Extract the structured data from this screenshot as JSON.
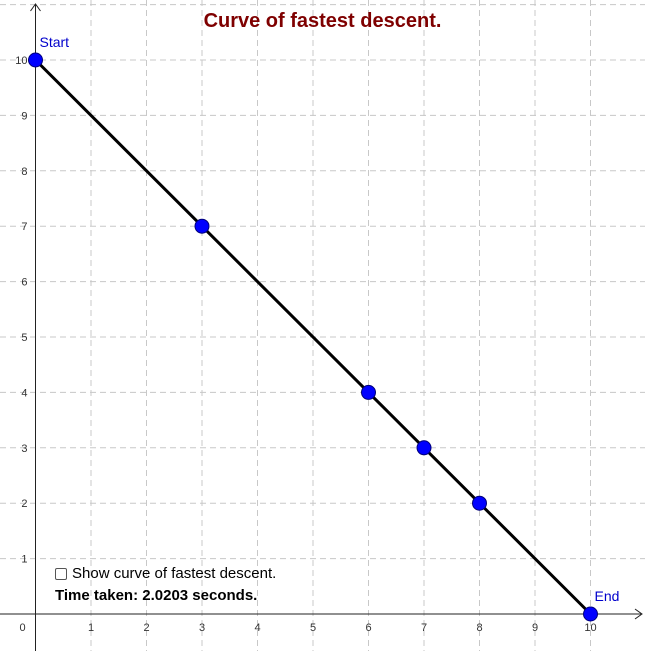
{
  "title": "Curve of fastest descent.",
  "title_color": "#7f0000",
  "axes": {
    "x_ticks": [
      "1",
      "2",
      "3",
      "4",
      "5",
      "6",
      "7",
      "8",
      "9",
      "10"
    ],
    "y_ticks": [
      "1",
      "2",
      "3",
      "4",
      "5",
      "6",
      "7",
      "8",
      "9",
      "10"
    ],
    "origin_label": "0",
    "xlim": [
      0,
      10
    ],
    "ylim": [
      0,
      10
    ],
    "grid": true
  },
  "chart_data": {
    "type": "line",
    "points": [
      {
        "x": 0,
        "y": 10,
        "label": "Start"
      },
      {
        "x": 3,
        "y": 7
      },
      {
        "x": 6,
        "y": 4
      },
      {
        "x": 7,
        "y": 3
      },
      {
        "x": 8,
        "y": 2
      },
      {
        "x": 10,
        "y": 0,
        "label": "End"
      }
    ],
    "point_color": "#0000ff",
    "line_color": "#000000",
    "label_color": "#0000cc"
  },
  "controls": {
    "checkbox_label": "Show curve of fastest descent.",
    "checkbox_checked": false,
    "time_label": "Time taken: 2.0203 seconds."
  }
}
